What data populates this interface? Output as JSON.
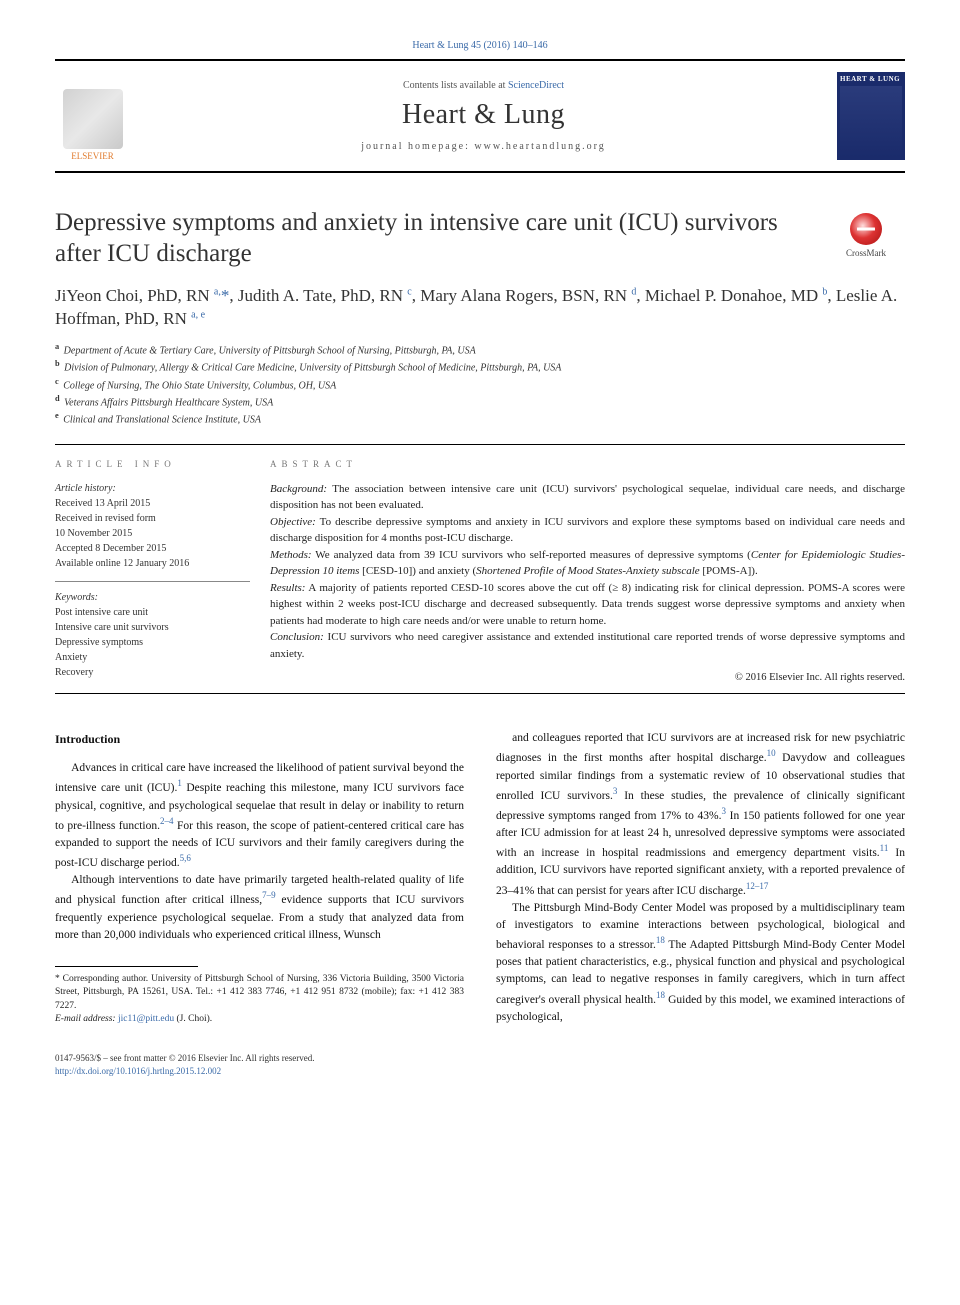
{
  "page": {
    "citation": "Heart & Lung 45 (2016) 140–146",
    "contents_prefix": "Contents lists available at ",
    "contents_link": "ScienceDirect",
    "journal_name": "Heart & Lung",
    "homepage_prefix": "journal homepage: ",
    "homepage_url": "www.heartandlung.org",
    "publisher_name": "ELSEVIER",
    "cover_label": "HEART & LUNG",
    "crossmark_label": "CrossMark"
  },
  "article": {
    "title": "Depressive symptoms and anxiety in intensive care unit (ICU) survivors after ICU discharge",
    "authors_html": "JiYeon Choi, PhD, RN <sup>a,</sup><span class='star'>*</span>, Judith A. Tate, PhD, RN <sup>c</sup>, Mary Alana Rogers, BSN, RN <sup>d</sup>, Michael P. Donahoe, MD <sup>b</sup>, Leslie A. Hoffman, PhD, RN <sup>a, e</sup>",
    "affiliations": [
      {
        "key": "a",
        "text": "Department of Acute & Tertiary Care, University of Pittsburgh School of Nursing, Pittsburgh, PA, USA"
      },
      {
        "key": "b",
        "text": "Division of Pulmonary, Allergy & Critical Care Medicine, University of Pittsburgh School of Medicine, Pittsburgh, PA, USA"
      },
      {
        "key": "c",
        "text": "College of Nursing, The Ohio State University, Columbus, OH, USA"
      },
      {
        "key": "d",
        "text": "Veterans Affairs Pittsburgh Healthcare System, USA"
      },
      {
        "key": "e",
        "text": "Clinical and Translational Science Institute, USA"
      }
    ]
  },
  "info": {
    "section_label": "article info",
    "history_label": "Article history:",
    "history": [
      "Received 13 April 2015",
      "Received in revised form",
      "10 November 2015",
      "Accepted 8 December 2015",
      "Available online 12 January 2016"
    ],
    "keywords_label": "Keywords:",
    "keywords": [
      "Post intensive care unit",
      "Intensive care unit survivors",
      "Depressive symptoms",
      "Anxiety",
      "Recovery"
    ]
  },
  "abstract": {
    "section_label": "abstract",
    "segments": [
      {
        "label": "Background:",
        "text": " The association between intensive care unit (ICU) survivors' psychological sequelae, individual care needs, and discharge disposition has not been evaluated."
      },
      {
        "label": "Objective:",
        "text": " To describe depressive symptoms and anxiety in ICU survivors and explore these symptoms based on individual care needs and discharge disposition for 4 months post-ICU discharge."
      },
      {
        "label": "Methods:",
        "text": " We analyzed data from 39 ICU survivors who self-reported measures of depressive symptoms (<span class='ital'>Center for Epidemiologic Studies-Depression 10 items</span> [CESD-10]) and anxiety (<span class='ital'>Shortened Profile of Mood States-Anxiety subscale</span> [POMS-A])."
      },
      {
        "label": "Results:",
        "text": " A majority of patients reported CESD-10 scores above the cut off (≥ 8) indicating risk for clinical depression. POMS-A scores were highest within 2 weeks post-ICU discharge and decreased subsequently. Data trends suggest worse depressive symptoms and anxiety when patients had moderate to high care needs and/or were unable to return home."
      },
      {
        "label": "Conclusion:",
        "text": " ICU survivors who need caregiver assistance and extended institutional care reported trends of worse depressive symptoms and anxiety."
      }
    ],
    "copyright": "© 2016 Elsevier Inc. All rights reserved."
  },
  "body": {
    "heading": "Introduction",
    "left_paragraphs": [
      "Advances in critical care have increased the likelihood of patient survival beyond the intensive care unit (ICU).<sup>1</sup> Despite reaching this milestone, many ICU survivors face physical, cognitive, and psychological sequelae that result in delay or inability to return to pre-illness function.<sup>2–4</sup> For this reason, the scope of patient-centered critical care has expanded to support the needs of ICU survivors and their family caregivers during the post-ICU discharge period.<sup>5,6</sup>",
      "Although interventions to date have primarily targeted health-related quality of life and physical function after critical illness,<sup>7–9</sup> evidence supports that ICU survivors frequently experience psychological sequelae. From a study that analyzed data from more than 20,000 individuals who experienced critical illness, Wunsch"
    ],
    "right_paragraphs": [
      "and colleagues reported that ICU survivors are at increased risk for new psychiatric diagnoses in the first months after hospital discharge.<sup>10</sup> Davydow and colleagues reported similar findings from a systematic review of 10 observational studies that enrolled ICU survivors.<sup>3</sup> In these studies, the prevalence of clinically significant depressive symptoms ranged from 17% to 43%.<sup>3</sup> In 150 patients followed for one year after ICU admission for at least 24 h, unresolved depressive symptoms were associated with an increase in hospital readmissions and emergency department visits.<sup>11</sup> In addition, ICU survivors have reported significant anxiety, with a reported prevalence of 23–41% that can persist for years after ICU discharge.<sup>12–17</sup>",
      "The Pittsburgh Mind-Body Center Model was proposed by a multidisciplinary team of investigators to examine interactions between psychological, biological and behavioral responses to a stressor.<sup>18</sup> The Adapted Pittsburgh Mind-Body Center Model poses that patient characteristics, e.g., physical function and physical and psychological symptoms, can lead to negative responses in family caregivers, which in turn affect caregiver's overall physical health.<sup>18</sup> Guided by this model, we examined interactions of psychological,"
    ]
  },
  "footnotes": {
    "corr_label": "* Corresponding author.",
    "corr_text": " University of Pittsburgh School of Nursing, 336 Victoria Building, 3500 Victoria Street, Pittsburgh, PA 15261, USA. Tel.: +1 412 383 7746, +1 412 951 8732 (mobile); fax: +1 412 383 7227.",
    "email_label": "E-mail address: ",
    "email": "jic11@pitt.edu",
    "email_suffix": " (J. Choi)."
  },
  "footer": {
    "issn_line": "0147-9563/$ – see front matter © 2016 Elsevier Inc. All rights reserved.",
    "doi": "http://dx.doi.org/10.1016/j.hrtlng.2015.12.002"
  },
  "colors": {
    "link": "#3a6aa8",
    "elsevier_orange": "#e07b2e",
    "cover_bg": "#1a2b6b"
  }
}
